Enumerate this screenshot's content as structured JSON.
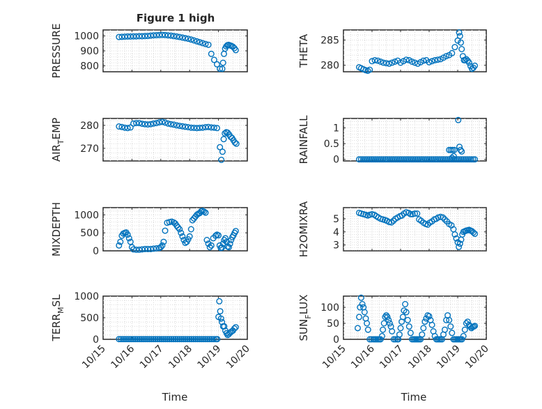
{
  "figure": {
    "title": "Figure 1 high",
    "xlabel_left": "Time",
    "xlabel_right": "Time",
    "x_tick_labels": [
      "10/15",
      "10/16",
      "10/17",
      "10/18",
      "10/19",
      "10/20"
    ]
  },
  "chart_data": [
    {
      "type": "scatter",
      "ylabel": "PRESSURE",
      "ylabel_sub": "",
      "xlim": [
        0,
        5
      ],
      "ylim": [
        760,
        1040
      ],
      "yticks": [
        800,
        900,
        1000
      ],
      "x": [
        0.55,
        0.65,
        0.75,
        0.85,
        0.95,
        1.05,
        1.15,
        1.25,
        1.35,
        1.45,
        1.55,
        1.65,
        1.75,
        1.85,
        1.95,
        2.05,
        2.15,
        2.25,
        2.35,
        2.45,
        2.55,
        2.65,
        2.75,
        2.85,
        2.95,
        3.05,
        3.15,
        3.25,
        3.35,
        3.45,
        3.55,
        3.65,
        3.75,
        3.85,
        3.95,
        4.05,
        4.13,
        4.16,
        4.19,
        4.23,
        4.27,
        4.31,
        4.35,
        4.4,
        4.45,
        4.5,
        4.55,
        4.6
      ],
      "y": [
        993,
        994,
        995,
        996,
        996,
        997,
        997,
        998,
        998,
        999,
        1000,
        1002,
        1004,
        1005,
        1006,
        1007,
        1006,
        1004,
        1002,
        999,
        996,
        993,
        989,
        985,
        981,
        976,
        970,
        964,
        958,
        952,
        946,
        941,
        880,
        840,
        810,
        780,
        780,
        820,
        880,
        915,
        930,
        938,
        940,
        937,
        933,
        928,
        918,
        905
      ]
    },
    {
      "type": "scatter",
      "ylabel": "THETA",
      "ylabel_sub": "",
      "xlim": [
        0,
        5
      ],
      "ylim": [
        278.7,
        287
      ],
      "yticks": [
        280,
        285
      ],
      "x": [
        0.55,
        0.62,
        0.7,
        0.78,
        0.85,
        0.92,
        1.0,
        1.1,
        1.2,
        1.3,
        1.4,
        1.5,
        1.6,
        1.7,
        1.8,
        1.9,
        2.0,
        2.1,
        2.2,
        2.3,
        2.4,
        2.5,
        2.6,
        2.7,
        2.8,
        2.9,
        3.0,
        3.1,
        3.2,
        3.3,
        3.4,
        3.5,
        3.6,
        3.7,
        3.8,
        3.9,
        4.0,
        4.05,
        4.08,
        4.11,
        4.14,
        4.18,
        4.22,
        4.26,
        4.3,
        4.35,
        4.4,
        4.45,
        4.5,
        4.55,
        4.6
      ],
      "y": [
        279.6,
        279.4,
        279.2,
        279.0,
        278.9,
        279.1,
        280.8,
        281.0,
        280.9,
        280.7,
        280.5,
        280.4,
        280.3,
        280.5,
        280.7,
        280.9,
        280.5,
        280.8,
        281.1,
        281.0,
        280.7,
        280.5,
        280.3,
        280.6,
        280.9,
        281.0,
        280.6,
        280.8,
        281.0,
        281.1,
        281.2,
        281.5,
        281.8,
        282.0,
        282.4,
        283.6,
        284.9,
        286.5,
        285.8,
        284.5,
        283.2,
        281.8,
        281.0,
        281.0,
        281.2,
        280.9,
        280.5,
        279.8,
        279.3,
        279.5,
        279.9
      ]
    },
    {
      "type": "scatter",
      "ylabel": "AIR",
      "ylabel_sub": "T",
      "ylabel_tail": "EMP",
      "xlim": [
        0,
        5
      ],
      "ylim": [
        264.5,
        283
      ],
      "yticks": [
        270,
        280
      ],
      "x": [
        0.55,
        0.65,
        0.75,
        0.85,
        0.95,
        1.05,
        1.15,
        1.25,
        1.35,
        1.45,
        1.55,
        1.65,
        1.75,
        1.85,
        1.95,
        2.05,
        2.15,
        2.25,
        2.35,
        2.45,
        2.55,
        2.65,
        2.75,
        2.85,
        2.95,
        3.05,
        3.15,
        3.25,
        3.35,
        3.45,
        3.55,
        3.65,
        3.75,
        3.85,
        3.95,
        4.05,
        4.1,
        4.14,
        4.18,
        4.22,
        4.27,
        4.32,
        4.37,
        4.42,
        4.47,
        4.52,
        4.57,
        4.62
      ],
      "y": [
        279.5,
        279.3,
        279.0,
        278.8,
        279.1,
        280.8,
        281.0,
        281.0,
        280.7,
        280.5,
        280.4,
        280.5,
        280.8,
        281.0,
        281.3,
        281.5,
        281.2,
        280.8,
        280.5,
        280.3,
        280.0,
        279.8,
        279.6,
        279.4,
        279.2,
        279.0,
        278.9,
        278.8,
        278.9,
        279.0,
        279.2,
        279.3,
        279.1,
        279.0,
        278.8,
        270.5,
        265.0,
        268.5,
        274.0,
        276.5,
        277.0,
        276.8,
        276.0,
        275.0,
        274.5,
        273.5,
        272.5,
        272.0
      ]
    },
    {
      "type": "scatter",
      "ylabel": "RAINFALL",
      "ylabel_sub": "",
      "xlim": [
        0,
        5
      ],
      "ylim": [
        -0.05,
        1.3
      ],
      "yticks": [
        0,
        0.5,
        1
      ],
      "x": [
        0.55,
        0.62,
        0.69,
        0.76,
        0.83,
        0.9,
        0.97,
        1.04,
        1.11,
        1.18,
        1.25,
        1.32,
        1.39,
        1.46,
        1.53,
        1.6,
        1.67,
        1.74,
        1.81,
        1.88,
        1.95,
        2.02,
        2.09,
        2.16,
        2.23,
        2.3,
        2.37,
        2.44,
        2.51,
        2.58,
        2.65,
        2.72,
        2.79,
        2.86,
        2.93,
        3.0,
        3.07,
        3.14,
        3.21,
        3.28,
        3.35,
        3.42,
        3.49,
        3.56,
        3.63,
        3.7,
        3.77,
        3.84,
        3.91,
        3.98,
        4.05,
        4.12,
        4.19,
        4.26,
        4.33,
        4.4,
        4.47,
        4.54,
        4.6,
        3.7,
        3.76,
        3.82,
        3.88,
        3.8,
        3.86,
        4.02,
        4.06,
        4.1,
        4.14
      ],
      "y": [
        0,
        0,
        0,
        0,
        0,
        0,
        0,
        0,
        0,
        0,
        0,
        0,
        0,
        0,
        0,
        0,
        0,
        0,
        0,
        0,
        0,
        0,
        0,
        0,
        0,
        0,
        0,
        0,
        0,
        0,
        0,
        0,
        0,
        0,
        0,
        0,
        0,
        0,
        0,
        0,
        0,
        0,
        0,
        0,
        0,
        0,
        0,
        0,
        0,
        0,
        0,
        0,
        0,
        0,
        0,
        0,
        0,
        0,
        0,
        0.3,
        0.3,
        0.3,
        0.3,
        0.05,
        0.1,
        1.25,
        0.4,
        0.3,
        0.25
      ]
    },
    {
      "type": "scatter",
      "ylabel": "MIXDEPTH",
      "ylabel_sub": "",
      "xlim": [
        0,
        5
      ],
      "ylim": [
        0,
        1200
      ],
      "yticks": [
        0,
        500,
        1000
      ],
      "x": [
        0.55,
        0.6,
        0.65,
        0.7,
        0.75,
        0.8,
        0.85,
        0.9,
        0.95,
        1.0,
        1.05,
        1.15,
        1.25,
        1.35,
        1.45,
        1.55,
        1.65,
        1.75,
        1.85,
        1.95,
        2.0,
        2.05,
        2.1,
        2.15,
        2.22,
        2.3,
        2.38,
        2.45,
        2.5,
        2.55,
        2.6,
        2.65,
        2.7,
        2.75,
        2.8,
        2.85,
        2.9,
        2.95,
        3.0,
        3.05,
        3.1,
        3.15,
        3.2,
        3.25,
        3.3,
        3.35,
        3.4,
        3.45,
        3.5,
        3.55,
        3.6,
        3.65,
        3.7,
        3.75,
        3.82,
        3.9,
        3.95,
        4.0,
        4.04,
        4.08,
        4.12,
        4.16,
        4.2,
        4.24,
        4.28,
        4.32,
        4.36,
        4.4,
        4.44,
        4.48,
        4.52,
        4.56,
        4.6
      ],
      "y": [
        150,
        250,
        420,
        480,
        500,
        510,
        450,
        350,
        250,
        100,
        40,
        30,
        30,
        40,
        50,
        50,
        50,
        60,
        70,
        80,
        100,
        150,
        250,
        560,
        780,
        800,
        810,
        790,
        760,
        700,
        650,
        600,
        500,
        400,
        300,
        220,
        250,
        320,
        400,
        600,
        850,
        900,
        950,
        1000,
        1030,
        1050,
        1100,
        1110,
        1090,
        1060,
        300,
        200,
        100,
        150,
        350,
        420,
        450,
        430,
        150,
        80,
        90,
        200,
        300,
        350,
        250,
        120,
        100,
        200,
        300,
        380,
        430,
        500,
        550
      ]
    },
    {
      "type": "scatter",
      "ylabel": "H2OMIXRA",
      "ylabel_sub": "",
      "xlim": [
        0,
        5
      ],
      "ylim": [
        2.55,
        5.85
      ],
      "yticks": [
        3,
        4,
        5
      ],
      "x": [
        0.55,
        0.62,
        0.7,
        0.78,
        0.85,
        0.92,
        1.0,
        1.08,
        1.15,
        1.22,
        1.3,
        1.38,
        1.45,
        1.52,
        1.6,
        1.68,
        1.75,
        1.82,
        1.9,
        1.98,
        2.05,
        2.12,
        2.2,
        2.28,
        2.35,
        2.42,
        2.5,
        2.58,
        2.65,
        2.72,
        2.8,
        2.88,
        2.95,
        3.02,
        3.1,
        3.18,
        3.25,
        3.32,
        3.4,
        3.48,
        3.55,
        3.62,
        3.7,
        3.78,
        3.85,
        3.9,
        3.95,
        4.0,
        4.04,
        4.08,
        4.12,
        4.16,
        4.2,
        4.25,
        4.3,
        4.35,
        4.4,
        4.45,
        4.5,
        4.55,
        4.6
      ],
      "y": [
        5.45,
        5.4,
        5.35,
        5.3,
        5.25,
        5.3,
        5.35,
        5.3,
        5.2,
        5.1,
        5.0,
        4.95,
        4.9,
        4.85,
        4.75,
        4.72,
        4.85,
        5.0,
        5.1,
        5.2,
        5.25,
        5.4,
        5.5,
        5.45,
        5.35,
        5.35,
        5.4,
        5.4,
        4.95,
        4.85,
        4.7,
        4.6,
        4.55,
        4.7,
        4.8,
        4.95,
        5.0,
        5.1,
        5.15,
        5.1,
        4.95,
        4.8,
        4.6,
        4.5,
        4.2,
        3.8,
        3.5,
        3.2,
        2.85,
        3.1,
        3.4,
        3.8,
        4.0,
        4.05,
        4.1,
        4.12,
        4.15,
        4.1,
        4.05,
        3.95,
        3.85
      ]
    },
    {
      "type": "scatter",
      "ylabel": "TERR",
      "ylabel_sub": "M",
      "ylabel_tail": "SL",
      "xlim": [
        0,
        5
      ],
      "ylim": [
        0,
        1000
      ],
      "yticks": [
        0,
        500,
        1000
      ],
      "x": [
        0.55,
        0.62,
        0.69,
        0.76,
        0.83,
        0.9,
        0.97,
        1.04,
        1.11,
        1.18,
        1.25,
        1.32,
        1.39,
        1.46,
        1.53,
        1.6,
        1.67,
        1.74,
        1.81,
        1.88,
        1.95,
        2.02,
        2.09,
        2.16,
        2.23,
        2.3,
        2.37,
        2.44,
        2.51,
        2.58,
        2.65,
        2.72,
        2.79,
        2.86,
        2.93,
        3.0,
        3.07,
        3.14,
        3.21,
        3.28,
        3.35,
        3.42,
        3.49,
        3.56,
        3.63,
        3.7,
        3.77,
        3.84,
        3.91,
        3.96,
        4.0,
        4.03,
        4.06,
        4.09,
        4.12,
        4.16,
        4.2,
        4.24,
        4.28,
        4.32,
        4.36,
        4.4,
        4.45,
        4.5,
        4.55,
        4.6
      ],
      "y": [
        5,
        5,
        5,
        5,
        5,
        5,
        5,
        5,
        5,
        5,
        5,
        5,
        5,
        5,
        5,
        5,
        5,
        5,
        5,
        5,
        5,
        5,
        5,
        5,
        5,
        5,
        5,
        5,
        5,
        5,
        5,
        5,
        5,
        5,
        5,
        5,
        5,
        5,
        5,
        5,
        5,
        5,
        5,
        5,
        5,
        5,
        5,
        5,
        5,
        5,
        520,
        880,
        650,
        480,
        400,
        300,
        300,
        200,
        140,
        100,
        120,
        150,
        180,
        200,
        250,
        280
      ]
    },
    {
      "type": "scatter",
      "ylabel": "SUN",
      "ylabel_sub": "F",
      "ylabel_tail": "LUX",
      "xlim": [
        0,
        5
      ],
      "ylim": [
        0,
        135
      ],
      "yticks": [
        0,
        50,
        100
      ],
      "x": [
        0.5,
        0.55,
        0.58,
        0.62,
        0.66,
        0.7,
        0.74,
        0.78,
        0.82,
        0.86,
        0.92,
        0.98,
        1.05,
        1.1,
        1.15,
        1.2,
        1.25,
        1.3,
        1.35,
        1.38,
        1.42,
        1.46,
        1.5,
        1.54,
        1.58,
        1.62,
        1.66,
        1.7,
        1.76,
        1.82,
        1.88,
        1.92,
        1.96,
        2.0,
        2.04,
        2.08,
        2.12,
        2.16,
        2.2,
        2.25,
        2.3,
        2.35,
        2.4,
        2.45,
        2.5,
        2.55,
        2.6,
        2.65,
        2.7,
        2.75,
        2.8,
        2.85,
        2.9,
        2.95,
        3.0,
        3.05,
        3.1,
        3.15,
        3.2,
        3.25,
        3.3,
        3.35,
        3.4,
        3.45,
        3.5,
        3.55,
        3.6,
        3.65,
        3.7,
        3.75,
        3.8,
        3.85,
        3.9,
        3.95,
        4.0,
        4.05,
        4.1,
        4.15,
        4.2,
        4.25,
        4.3,
        4.35,
        4.4,
        4.44,
        4.48,
        4.52,
        4.56,
        4.6
      ],
      "y": [
        35,
        70,
        100,
        130,
        110,
        100,
        85,
        65,
        50,
        30,
        0,
        0,
        0,
        0,
        0,
        0,
        0,
        0,
        10,
        30,
        50,
        70,
        75,
        70,
        60,
        50,
        40,
        25,
        0,
        0,
        0,
        0,
        15,
        35,
        55,
        70,
        90,
        110,
        85,
        60,
        40,
        20,
        0,
        0,
        0,
        0,
        0,
        0,
        0,
        15,
        35,
        55,
        65,
        75,
        72,
        60,
        45,
        25,
        10,
        0,
        0,
        0,
        0,
        0,
        15,
        30,
        60,
        75,
        60,
        40,
        20,
        0,
        0,
        0,
        0,
        0,
        0,
        0,
        10,
        30,
        50,
        55,
        45,
        40,
        35,
        38,
        40,
        42
      ]
    }
  ]
}
